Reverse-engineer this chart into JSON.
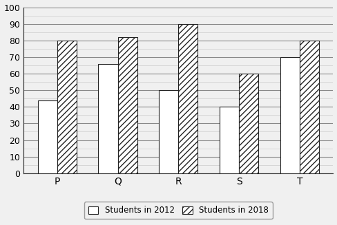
{
  "categories": [
    "P",
    "Q",
    "R",
    "S",
    "T"
  ],
  "students_2012": [
    44,
    66,
    50,
    40,
    70
  ],
  "students_2018": [
    80,
    82,
    90,
    60,
    80
  ],
  "ylim": [
    0,
    100
  ],
  "yticks_major": [
    0,
    10,
    20,
    30,
    40,
    50,
    60,
    70,
    80,
    90,
    100
  ],
  "bar_width": 0.32,
  "color_2012": "#ffffff",
  "color_2018": "#ffffff",
  "hatch_2012": "",
  "hatch_2018": "////",
  "edge_color": "#222222",
  "grid_major_color": "#888888",
  "grid_minor_color": "#cccccc",
  "legend_label_2012": "Students in 2012",
  "legend_label_2018": "Students in 2018",
  "bg_color": "#f0f0f0",
  "plot_bg_color": "#f0f0f0",
  "border_color": "#aaaaaa"
}
